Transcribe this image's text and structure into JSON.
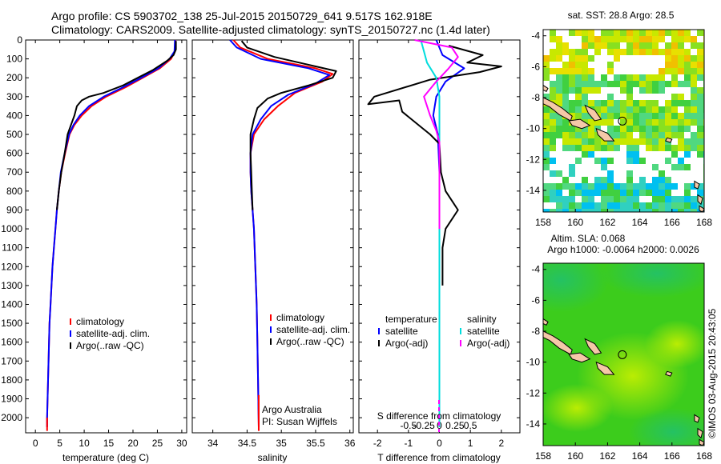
{
  "header": {
    "title_line1": "Argo profile: CS 5903702_138 25-Jul-2015 20150729_641 9.517S 162.918E",
    "title_line2": "Climatology: CARS2009. Satellite-adjusted climatology: synTS_20150727.nc (1.4d later)"
  },
  "colors": {
    "climatology": "#ff0000",
    "satellite": "#0000ff",
    "argo": "#000000",
    "salinity_satellite": "#00dddd",
    "salinity_argo": "#ff00ff"
  },
  "chart_data": [
    {
      "id": "temperature",
      "type": "line",
      "xlabel": "temperature (deg C)",
      "ylabel": "",
      "xlim": [
        -2,
        31
      ],
      "ylim": [
        2080,
        0
      ],
      "xticks": [
        0,
        5,
        10,
        15,
        20,
        25,
        30
      ],
      "yticks": [
        0,
        100,
        200,
        300,
        400,
        500,
        600,
        700,
        800,
        900,
        1000,
        1100,
        1200,
        1300,
        1400,
        1500,
        1600,
        1700,
        1800,
        1900,
        2000
      ],
      "grid": false,
      "legend": {
        "position": "bottom-left",
        "entries": [
          "climatology",
          "satellite-adj. clim.",
          "Argo(..raw -QC)"
        ]
      },
      "series": [
        {
          "name": "climatology",
          "color_key": "climatology",
          "points": [
            [
              28.7,
              0
            ],
            [
              28.6,
              60
            ],
            [
              27.8,
              100
            ],
            [
              25.5,
              150
            ],
            [
              22,
              200
            ],
            [
              18.5,
              250
            ],
            [
              14.5,
              300
            ],
            [
              11.5,
              350
            ],
            [
              9.5,
              400
            ],
            [
              8,
              450
            ],
            [
              7,
              500
            ],
            [
              6.1,
              600
            ],
            [
              5.3,
              700
            ],
            [
              4.8,
              800
            ],
            [
              4.4,
              900
            ],
            [
              4.1,
              1000
            ],
            [
              3.8,
              1100
            ],
            [
              3.5,
              1200
            ],
            [
              3.3,
              1300
            ],
            [
              3.1,
              1400
            ],
            [
              2.9,
              1500
            ],
            [
              2.8,
              1600
            ],
            [
              2.7,
              1700
            ],
            [
              2.6,
              1800
            ],
            [
              2.5,
              1900
            ],
            [
              2.4,
              2000
            ],
            [
              2.4,
              2050
            ]
          ]
        },
        {
          "name": "satellite-adj. clim.",
          "color_key": "satellite",
          "points": [
            [
              28.6,
              0
            ],
            [
              28.5,
              60
            ],
            [
              27.5,
              100
            ],
            [
              25.2,
              150
            ],
            [
              21.7,
              200
            ],
            [
              18,
              250
            ],
            [
              14,
              300
            ],
            [
              11,
              350
            ],
            [
              9.1,
              400
            ],
            [
              7.8,
              450
            ],
            [
              6.9,
              500
            ],
            [
              6,
              600
            ],
            [
              5.2,
              700
            ],
            [
              4.8,
              800
            ],
            [
              4.4,
              900
            ],
            [
              4.1,
              1000
            ],
            [
              3.8,
              1100
            ],
            [
              3.5,
              1200
            ],
            [
              3.3,
              1300
            ],
            [
              3.1,
              1400
            ],
            [
              2.9,
              1500
            ],
            [
              2.8,
              1600
            ],
            [
              2.7,
              1700
            ],
            [
              2.6,
              1800
            ],
            [
              2.5,
              1900
            ],
            [
              2.4,
              2000
            ],
            [
              2.4,
              2050
            ]
          ]
        },
        {
          "name": "Argo(..raw -QC)",
          "color_key": "argo",
          "points": [
            [
              28.8,
              5
            ],
            [
              28.8,
              50
            ],
            [
              28.3,
              80
            ],
            [
              27,
              110
            ],
            [
              24,
              160
            ],
            [
              21,
              200
            ],
            [
              18,
              240
            ],
            [
              14,
              280
            ],
            [
              11,
              300
            ],
            [
              9.5,
              320
            ],
            [
              8.5,
              350
            ],
            [
              8,
              400
            ],
            [
              7.3,
              450
            ],
            [
              6.6,
              500
            ],
            [
              6,
              600
            ],
            [
              5.3,
              700
            ],
            [
              4.8,
              800
            ],
            [
              4.4,
              900
            ]
          ]
        }
      ]
    },
    {
      "id": "salinity",
      "type": "line",
      "xlabel": "salinity",
      "xlim": [
        33.7,
        36.05
      ],
      "ylim": [
        2080,
        0
      ],
      "xticks": [
        34,
        34.5,
        35,
        35.5,
        36
      ],
      "grid": false,
      "legend": {
        "position": "bottom-left",
        "entries": [
          "climatology",
          "satellite-adj. clim.",
          "Argo(..raw -QC)"
        ]
      },
      "annotations": [
        "Argo Australia",
        "PI: Susan Wijffels"
      ],
      "series": [
        {
          "name": "climatology",
          "color_key": "climatology",
          "points": [
            [
              34.3,
              0
            ],
            [
              34.4,
              40
            ],
            [
              34.8,
              100
            ],
            [
              35.5,
              150
            ],
            [
              35.75,
              180
            ],
            [
              35.6,
              220
            ],
            [
              35.2,
              280
            ],
            [
              34.95,
              350
            ],
            [
              34.75,
              420
            ],
            [
              34.6,
              500
            ],
            [
              34.55,
              600
            ],
            [
              34.55,
              700
            ],
            [
              34.56,
              800
            ],
            [
              34.58,
              900
            ],
            [
              34.6,
              1000
            ],
            [
              34.62,
              1200
            ],
            [
              34.64,
              1400
            ],
            [
              34.65,
              1600
            ],
            [
              34.66,
              1800
            ],
            [
              34.67,
              2050
            ]
          ]
        },
        {
          "name": "satellite-adj. clim.",
          "color_key": "satellite",
          "points": [
            [
              34.25,
              0
            ],
            [
              34.35,
              40
            ],
            [
              34.7,
              100
            ],
            [
              35.4,
              150
            ],
            [
              35.7,
              185
            ],
            [
              35.5,
              230
            ],
            [
              35.1,
              290
            ],
            [
              34.85,
              350
            ],
            [
              34.7,
              420
            ],
            [
              34.58,
              500
            ],
            [
              34.55,
              600
            ],
            [
              34.55,
              700
            ],
            [
              34.56,
              800
            ],
            [
              34.58,
              900
            ],
            [
              34.6,
              1000
            ],
            [
              34.62,
              1200
            ],
            [
              34.64,
              1400
            ],
            [
              34.65,
              1600
            ],
            [
              34.66,
              1800
            ],
            [
              34.67,
              2050
            ]
          ]
        },
        {
          "name": "Argo(..raw -QC)",
          "color_key": "argo",
          "points": [
            [
              34.42,
              5
            ],
            [
              34.5,
              40
            ],
            [
              34.9,
              90
            ],
            [
              35.5,
              140
            ],
            [
              35.8,
              165
            ],
            [
              35.75,
              200
            ],
            [
              35.4,
              240
            ],
            [
              35.0,
              280
            ],
            [
              34.8,
              310
            ],
            [
              34.65,
              360
            ],
            [
              34.6,
              420
            ],
            [
              34.55,
              500
            ],
            [
              34.55,
              600
            ],
            [
              34.56,
              700
            ],
            [
              34.57,
              800
            ],
            [
              34.58,
              900
            ]
          ]
        }
      ]
    },
    {
      "id": "differences",
      "type": "line",
      "xlabel": "T difference from climatology",
      "secondary_xlabel": "S difference from climatology",
      "xlim": [
        -2.6,
        2.6
      ],
      "ylim": [
        2080,
        0
      ],
      "xticks": [
        -2,
        -1,
        0,
        1,
        2
      ],
      "secondary_xticks": [
        "-0.5",
        "-0.25",
        "0",
        "0.25",
        "0.5"
      ],
      "grid": false,
      "legend": {
        "position": "bottom",
        "entries": [
          "temperature",
          "satellite",
          "Argo(-adj)",
          "salinity",
          "satellite",
          "Argo(-adj)"
        ]
      },
      "series": [
        {
          "name": "temperature satellite",
          "color_key": "satellite",
          "points": [
            [
              -0.1,
              0
            ],
            [
              0.1,
              80
            ],
            [
              0.8,
              150
            ],
            [
              0.2,
              220
            ],
            [
              -0.1,
              300
            ],
            [
              -0.2,
              400
            ],
            [
              -0.05,
              500
            ],
            [
              0,
              700
            ],
            [
              0,
              1200
            ],
            [
              0,
              2050
            ]
          ]
        },
        {
          "name": "temperature Argo(-adj)",
          "color_key": "argo",
          "points": [
            [
              0.3,
              30
            ],
            [
              1.4,
              80
            ],
            [
              0.9,
              120
            ],
            [
              2.0,
              140
            ],
            [
              1.3,
              170
            ],
            [
              -0.3,
              210
            ],
            [
              -2.1,
              300
            ],
            [
              -2.3,
              340
            ],
            [
              -1.3,
              320
            ],
            [
              -1.2,
              380
            ],
            [
              -0.6,
              460
            ],
            [
              -0.3,
              500
            ],
            [
              0,
              550
            ],
            [
              0.05,
              700
            ],
            [
              0.2,
              800
            ],
            [
              0.6,
              900
            ],
            [
              0.2,
              1000
            ],
            [
              0.1,
              1100
            ],
            [
              0.1,
              1300
            ]
          ]
        },
        {
          "name": "salinity satellite",
          "color_key": "salinity_satellite",
          "points": [
            [
              -0.6,
              0
            ],
            [
              -0.5,
              60
            ],
            [
              -0.4,
              120
            ],
            [
              -0.1,
              200
            ],
            [
              0,
              300
            ],
            [
              0,
              500
            ],
            [
              0,
              2050
            ]
          ]
        },
        {
          "name": "salinity Argo(-adj)",
          "color_key": "salinity_argo",
          "points": [
            [
              -0.8,
              0
            ],
            [
              0.4,
              40
            ],
            [
              0.6,
              90
            ],
            [
              0.3,
              150
            ],
            [
              -0.1,
              220
            ],
            [
              -0.5,
              300
            ],
            [
              -0.3,
              400
            ],
            [
              -0.1,
              480
            ],
            [
              0,
              540
            ],
            [
              0,
              900
            ],
            [
              0,
              1000
            ]
          ]
        }
      ]
    },
    {
      "id": "sst-map",
      "type": "heatmap",
      "title": "sat. SST: 28.8 Argo: 28.5",
      "xlim": [
        158,
        168
      ],
      "ylim": [
        -15.4,
        -3.6
      ],
      "xticks": [
        158,
        160,
        162,
        164,
        166,
        168
      ],
      "yticks": [
        -4,
        -6,
        -8,
        -10,
        -12,
        -14
      ],
      "marker": {
        "lon": 162.918,
        "lat": -9.517
      }
    },
    {
      "id": "sla-map",
      "type": "heatmap",
      "title_line1": "Altim. SLA: 0.068",
      "title_line2": "Argo h1000: -0.0064 h2000: 0.0026",
      "xlim": [
        158,
        168
      ],
      "ylim": [
        -15.4,
        -3.6
      ],
      "xticks": [
        158,
        160,
        162,
        164,
        166,
        168
      ],
      "yticks": [
        -4,
        -6,
        -8,
        -10,
        -12,
        -14
      ],
      "marker": {
        "lon": 162.918,
        "lat": -9.517
      }
    }
  ],
  "side_label": "©IMOS 03-Aug-2015 20:43:05"
}
